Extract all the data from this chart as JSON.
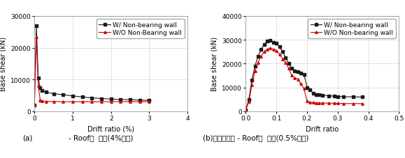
{
  "chart1": {
    "xlabel": "Drift ratio (%)",
    "ylabel": "Base shear (kN)",
    "xlim": [
      0,
      4
    ],
    "ylim": [
      0,
      30000
    ],
    "yticks": [
      0,
      10000,
      20000,
      30000
    ],
    "xticks": [
      0,
      1,
      2,
      3,
      4
    ],
    "legend1": "W/ Non-bearing wall",
    "legend2": "W/O Non-Bearing wall",
    "black_x": [
      0.0,
      0.05,
      0.1,
      0.15,
      0.2,
      0.3,
      0.5,
      0.75,
      1.0,
      1.25,
      1.5,
      1.75,
      2.0,
      2.25,
      2.5,
      2.75,
      3.0
    ],
    "black_y": [
      2000,
      27000,
      10500,
      7500,
      6500,
      6000,
      5500,
      5200,
      4800,
      4500,
      4200,
      4000,
      3800,
      3700,
      3600,
      3500,
      3400
    ],
    "red_x": [
      0.0,
      0.05,
      0.1,
      0.15,
      0.2,
      0.3,
      0.5,
      0.75,
      1.0,
      1.25,
      1.5,
      1.75,
      2.0,
      2.25,
      2.5,
      2.75,
      3.0
    ],
    "red_y": [
      2000,
      23500,
      8000,
      3500,
      3200,
      3100,
      3050,
      3000,
      3000,
      3000,
      3000,
      3000,
      3000,
      3000,
      3000,
      3000,
      3000
    ]
  },
  "chart2": {
    "xlabel": "Drift ratio",
    "ylabel": "Base shear (kN)",
    "xlim": [
      0.0,
      0.5
    ],
    "ylim": [
      0,
      40000
    ],
    "yticks": [
      0,
      10000,
      20000,
      30000,
      40000
    ],
    "xticks": [
      0.0,
      0.1,
      0.2,
      0.3,
      0.4,
      0.5
    ],
    "legend1": "W/ Non-bearing wall",
    "legend2": "W/O Non-bearing wall",
    "black_x": [
      0.0,
      0.01,
      0.02,
      0.03,
      0.04,
      0.05,
      0.06,
      0.07,
      0.08,
      0.09,
      0.1,
      0.11,
      0.12,
      0.13,
      0.14,
      0.15,
      0.16,
      0.17,
      0.18,
      0.19,
      0.2,
      0.21,
      0.22,
      0.23,
      0.24,
      0.25,
      0.27,
      0.29,
      0.3,
      0.32,
      0.35,
      0.38
    ],
    "black_y": [
      500,
      5000,
      13000,
      19000,
      23000,
      26000,
      28000,
      29500,
      29800,
      29000,
      28500,
      27000,
      25000,
      22500,
      20000,
      18000,
      17000,
      16500,
      16000,
      15500,
      10000,
      9000,
      7500,
      7000,
      6800,
      6700,
      6500,
      6300,
      6200,
      6100,
      6000,
      6000
    ],
    "red_x": [
      0.0,
      0.01,
      0.02,
      0.03,
      0.04,
      0.05,
      0.06,
      0.07,
      0.08,
      0.09,
      0.1,
      0.11,
      0.12,
      0.13,
      0.14,
      0.15,
      0.16,
      0.17,
      0.18,
      0.19,
      0.2,
      0.21,
      0.22,
      0.23,
      0.24,
      0.25,
      0.27,
      0.29,
      0.3,
      0.32,
      0.35,
      0.38
    ],
    "red_y": [
      500,
      4000,
      11000,
      17000,
      20500,
      23000,
      25000,
      26000,
      26500,
      26000,
      25500,
      24000,
      22000,
      20500,
      18000,
      15000,
      14000,
      13500,
      11500,
      9500,
      4200,
      3800,
      3600,
      3500,
      3450,
      3400,
      3400,
      3300,
      3300,
      3200,
      3200,
      3200
    ]
  },
  "sub_a_left": "(a)",
  "sub_a_right": "- Roof층  변위(4%까지)",
  "sub_b": "(b)밀면전단력 - Roof층  변위(0.5%까지)",
  "black_color": "#1a1a1a",
  "red_color": "#cc0000",
  "marker_size": 2.5,
  "linewidth": 0.8,
  "tick_fontsize": 6.5,
  "legend_fontsize": 6.5,
  "label_fontsize": 7.0,
  "sub_fontsize": 7.5
}
